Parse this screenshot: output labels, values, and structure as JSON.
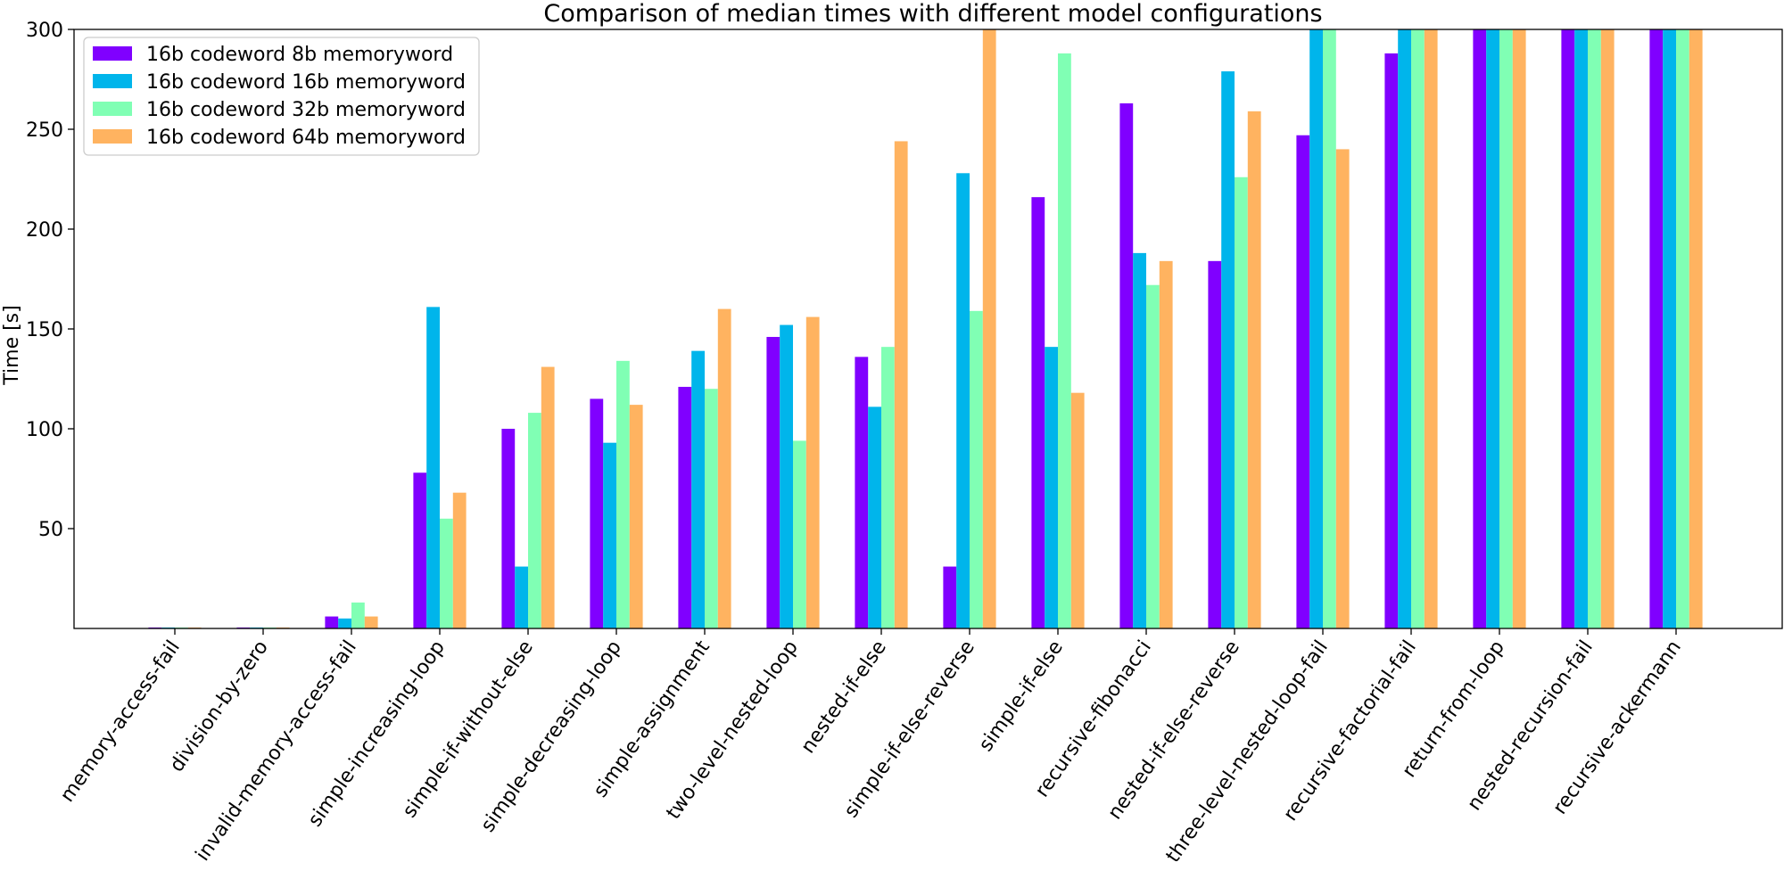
{
  "chart_data": {
    "type": "bar",
    "title": "Comparison of median times with different model configurations",
    "xlabel": "",
    "ylabel": "Time [s]",
    "ylim": [
      0,
      300
    ],
    "yticks": [
      50,
      100,
      150,
      200,
      250,
      300
    ],
    "legend_position": "top-left",
    "grid": false,
    "categories": [
      "memory-access-fail",
      "division-by-zero",
      "invalid-memory-access-fail",
      "simple-increasing-loop",
      "simple-if-without-else",
      "simple-decreasing-loop",
      "simple-assignment",
      "two-level-nested-loop",
      "nested-if-else",
      "simple-if-else-reverse",
      "simple-if-else",
      "recursive-fibonacci",
      "nested-if-else-reverse",
      "three-level-nested-loop-fail",
      "recursive-factorial-fail",
      "return-from-loop",
      "nested-recursion-fail",
      "recursive-ackermann"
    ],
    "series": [
      {
        "name": "16b codeword 8b memoryword",
        "color": "#8000ff",
        "values": [
          0.5,
          0.5,
          6,
          78,
          100,
          115,
          121,
          146,
          136,
          31,
          216,
          263,
          184,
          247,
          288,
          300,
          300,
          300
        ]
      },
      {
        "name": "16b codeword 16b memoryword",
        "color": "#00b5eb",
        "values": [
          0.5,
          0.5,
          5,
          161,
          31,
          93,
          139,
          152,
          111,
          228,
          141,
          188,
          279,
          300,
          300,
          300,
          300,
          300
        ]
      },
      {
        "name": "16b codeword 32b memoryword",
        "color": "#80ffb4",
        "values": [
          0.5,
          0.5,
          13,
          55,
          108,
          134,
          120,
          94,
          141,
          159,
          288,
          172,
          226,
          300,
          300,
          300,
          300,
          300
        ]
      },
      {
        "name": "16b codeword 64b memoryword",
        "color": "#ffb360",
        "values": [
          0.5,
          0.5,
          6,
          68,
          131,
          112,
          160,
          156,
          244,
          300,
          118,
          184,
          259,
          240,
          300,
          300,
          300,
          300
        ]
      }
    ]
  }
}
